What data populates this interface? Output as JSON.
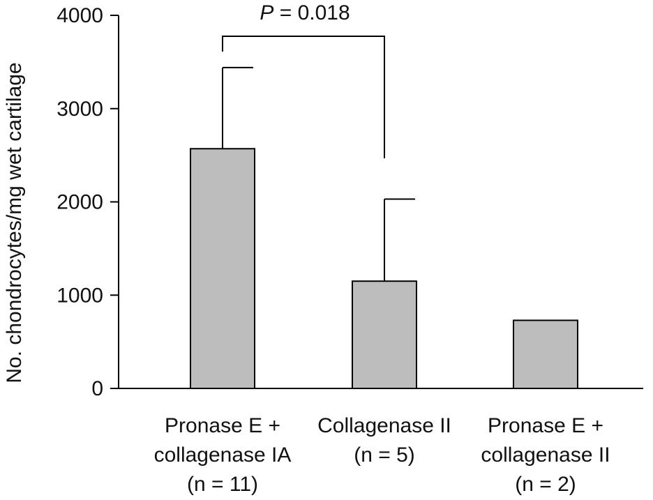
{
  "chart_data": {
    "type": "bar",
    "title": "",
    "xlabel": "",
    "ylabel": "No. chondrocytes/mg wet cartilage",
    "ylim": [
      0,
      4000
    ],
    "yticks": [
      0,
      1000,
      2000,
      3000,
      4000
    ],
    "ytick_labels": [
      "0",
      "1000",
      "2000",
      "3000",
      "4000"
    ],
    "categories": [
      [
        "Pronase E +",
        "collagenase IA",
        "(n = 11)"
      ],
      [
        "Collagenase II",
        "(n = 5)"
      ],
      [
        "Pronase E +",
        "collagenase II",
        "(n = 2)"
      ]
    ],
    "values": [
      2570,
      1150,
      730
    ],
    "error_upper": [
      870,
      880,
      null
    ],
    "bar_color": "#bdbdbd",
    "grid": false,
    "annotation": {
      "text_italic": "P",
      "text_rest": " = 0.018",
      "between": [
        0,
        1
      ]
    }
  }
}
